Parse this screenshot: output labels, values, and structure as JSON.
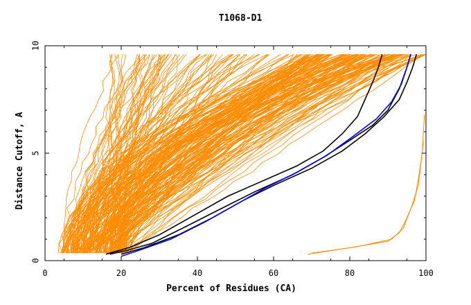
{
  "chart_data": {
    "type": "line",
    "title": "T1068-D1",
    "xlabel": "Percent of Residues (CA)",
    "ylabel": "Distance Cutoff, A",
    "xlim": [
      0,
      100
    ],
    "ylim": [
      0,
      10
    ],
    "x_ticks": [
      0,
      20,
      40,
      60,
      80,
      100
    ],
    "y_ticks": [
      0,
      5,
      10
    ],
    "grid": false,
    "colors": {
      "background_models": "#ff8c00",
      "highlight_black": "#000000",
      "highlight_blue": "#0000ff",
      "frame": "#000000"
    },
    "series": [
      {
        "color": "#000000",
        "points": [
          [
            17,
            0.3
          ],
          [
            22,
            0.5
          ],
          [
            28,
            0.8
          ],
          [
            36,
            1.5
          ],
          [
            46,
            2.4
          ],
          [
            55,
            3.2
          ],
          [
            65,
            4.0
          ],
          [
            73,
            4.8
          ],
          [
            80,
            5.6
          ],
          [
            86,
            6.3
          ],
          [
            90,
            7.0
          ],
          [
            93,
            8.0
          ],
          [
            95,
            9.0
          ],
          [
            96,
            9.6
          ]
        ]
      },
      {
        "color": "#000000",
        "points": [
          [
            20,
            0.3
          ],
          [
            26,
            0.6
          ],
          [
            35,
            1.2
          ],
          [
            44,
            2.0
          ],
          [
            52,
            2.8
          ],
          [
            60,
            3.5
          ],
          [
            70,
            4.3
          ],
          [
            78,
            5.1
          ],
          [
            84,
            5.9
          ],
          [
            89,
            6.7
          ],
          [
            93,
            7.5
          ],
          [
            95,
            8.3
          ],
          [
            96.5,
            9.0
          ],
          [
            97.5,
            9.6
          ]
        ]
      },
      {
        "color": "#000000",
        "points": [
          [
            16,
            0.3
          ],
          [
            22,
            0.6
          ],
          [
            30,
            1.2
          ],
          [
            40,
            2.2
          ],
          [
            48,
            3.0
          ],
          [
            57,
            3.7
          ],
          [
            66,
            4.4
          ],
          [
            73,
            5.1
          ],
          [
            78,
            5.9
          ],
          [
            82,
            6.7
          ],
          [
            84,
            7.5
          ],
          [
            86,
            8.3
          ],
          [
            87.5,
            9.0
          ],
          [
            88.5,
            9.6
          ]
        ]
      },
      {
        "color": "#0000ff",
        "points": [
          [
            20,
            0.2
          ],
          [
            25,
            0.5
          ],
          [
            33,
            1.0
          ],
          [
            42,
            1.8
          ],
          [
            50,
            2.6
          ],
          [
            58,
            3.4
          ],
          [
            66,
            4.1
          ],
          [
            74,
            4.9
          ],
          [
            81,
            5.8
          ],
          [
            87,
            6.6
          ],
          [
            91,
            7.4
          ],
          [
            93.5,
            8.2
          ],
          [
            95,
            9.0
          ],
          [
            96,
            9.6
          ]
        ]
      }
    ]
  }
}
